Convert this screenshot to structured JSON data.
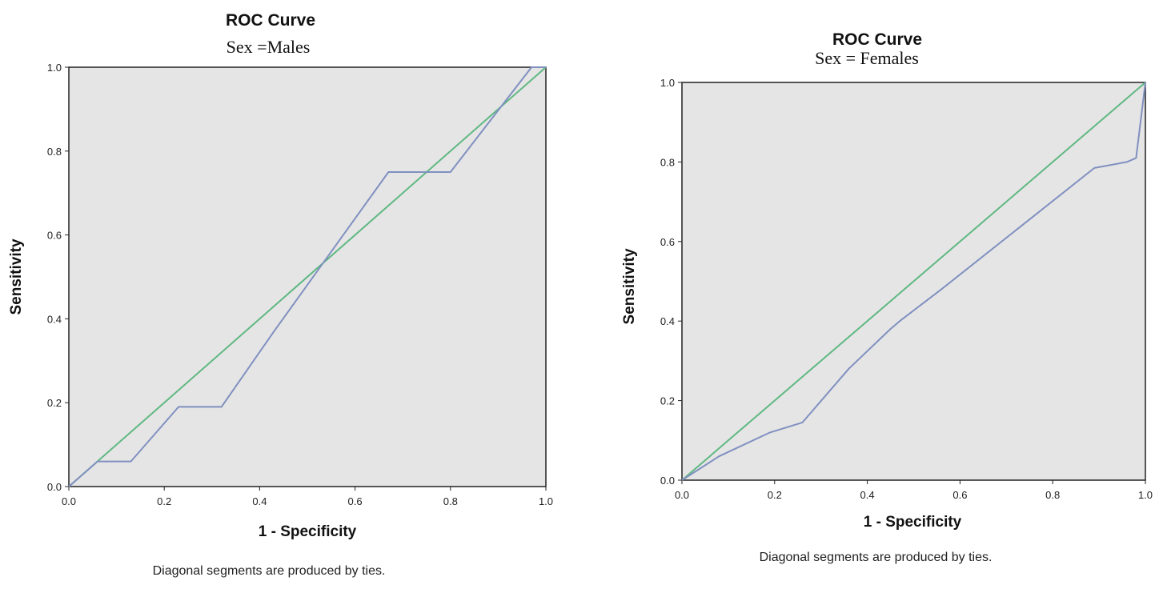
{
  "chart_data": [
    {
      "type": "line",
      "title": "ROC Curve",
      "subtitle": "Sex =Males",
      "xlabel": "1 - Specificity",
      "ylabel": "Sensitivity",
      "note": "Diagonal segments are produced by ties.",
      "xlim": [
        0,
        1
      ],
      "ylim": [
        0,
        1
      ],
      "x_ticks": [
        "0.0",
        "0.2",
        "0.4",
        "0.6",
        "0.8",
        "1.0"
      ],
      "y_ticks": [
        "0.0",
        "0.2",
        "0.4",
        "0.6",
        "0.8",
        "1.0"
      ],
      "grid": false,
      "series": [
        {
          "color": "#8090c0",
          "x": [
            0,
            0.06,
            0.13,
            0.23,
            0.32,
            0.43,
            0.67,
            0.8,
            0.97,
            1.0
          ],
          "y": [
            0,
            0.06,
            0.06,
            0.19,
            0.19,
            0.37,
            0.75,
            0.75,
            1.0,
            1.0
          ]
        },
        {
          "color": "#5fb882",
          "x": [
            0,
            1
          ],
          "y": [
            0,
            1
          ]
        }
      ]
    },
    {
      "type": "line",
      "title": "ROC Curve",
      "subtitle": "Sex = Females",
      "xlabel": "1 - Specificity",
      "ylabel": "Sensitivity",
      "note": "Diagonal segments are produced by ties.",
      "xlim": [
        0,
        1
      ],
      "ylim": [
        0,
        1
      ],
      "x_ticks": [
        "0.0",
        "0.2",
        "0.4",
        "0.6",
        "0.8",
        "1.0"
      ],
      "y_ticks": [
        "0.0",
        "0.2",
        "0.4",
        "0.6",
        "0.8",
        "1.0"
      ],
      "grid": false,
      "series": [
        {
          "color": "#8090c0",
          "x": [
            0,
            0.08,
            0.19,
            0.26,
            0.36,
            0.45,
            0.47,
            0.56,
            0.89,
            0.96,
            0.98,
            1.0
          ],
          "y": [
            0,
            0.06,
            0.12,
            0.145,
            0.28,
            0.38,
            0.4,
            0.48,
            0.785,
            0.8,
            0.81,
            1.0
          ]
        },
        {
          "color": "#5fb882",
          "x": [
            0,
            1
          ],
          "y": [
            0,
            1
          ]
        }
      ]
    }
  ]
}
